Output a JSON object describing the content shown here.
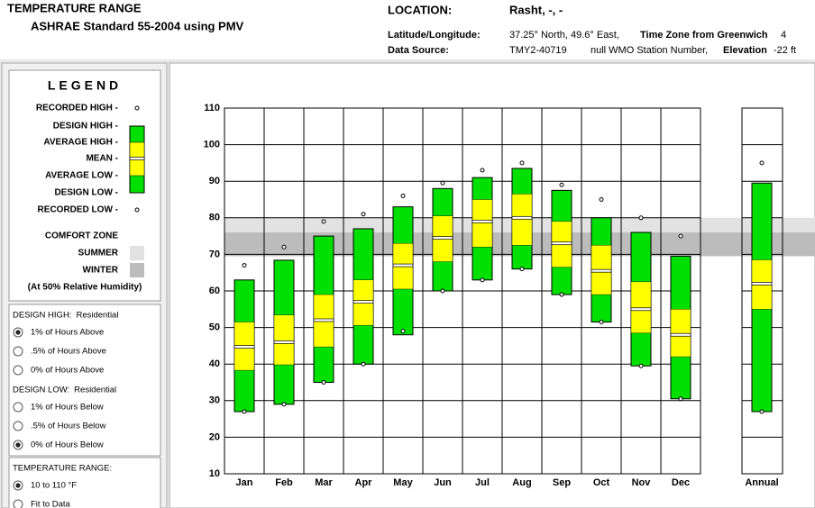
{
  "header": {
    "title": "TEMPERATURE RANGE",
    "subtitle": "ASHRAE Standard 55-2004 using PMV",
    "location_label": "LOCATION:",
    "location": "Rasht, -, -",
    "latlon_label": "Latitude/Longitude:",
    "latlon": "37.25° North, 49.6° East,",
    "timezone_label": "Time Zone from Greenwich",
    "timezone": "4",
    "source_label": "Data Source:",
    "source": "TMY2-40719",
    "wmo": "null WMO Station Number,",
    "elevation_label": "Elevation",
    "elevation": "-22 ft"
  },
  "legend_panel": {
    "title": "LEGEND",
    "comfort_title": "COMFORT ZONE",
    "note": "(At 50% Relative Humidity)"
  },
  "options": [
    {
      "title": "DESIGN HIGH:",
      "subtitle": "Residential",
      "items": [
        "1% of Hours Above",
        ".5% of Hours Above",
        "0% of Hours Above"
      ],
      "selected": 0
    },
    {
      "title": "DESIGN LOW:",
      "subtitle": "Residential",
      "items": [
        "1% of Hours Below",
        ".5% of Hours Below",
        "0% of Hours Below"
      ],
      "selected": 2
    },
    {
      "title": "TEMPERATURE RANGE:",
      "items": [
        "10 to 110 °F",
        "Fit to Data"
      ],
      "selected": 0
    }
  ],
  "chart_data": {
    "type": "range",
    "categories": [
      "Jan",
      "Feb",
      "Mar",
      "Apr",
      "May",
      "Jun",
      "Jul",
      "Aug",
      "Sep",
      "Oct",
      "Nov",
      "Dec",
      "Annual"
    ],
    "series": [
      {
        "name": "RECORDED HIGH -",
        "color": "#000000",
        "values": [
          67,
          72,
          79,
          81,
          86,
          89.5,
          93,
          95,
          89,
          85,
          80,
          75,
          95
        ]
      },
      {
        "name": "DESIGN HIGH -",
        "color": "#00e000",
        "values": [
          63,
          68.4,
          75,
          77,
          83,
          88,
          91,
          93.5,
          87.5,
          80,
          76,
          69.5,
          89.5
        ]
      },
      {
        "name": "AVERAGE HIGH -",
        "color": "#ffff00",
        "values": [
          51.5,
          53.4,
          59,
          63,
          73,
          80.5,
          85,
          86.5,
          79,
          72.5,
          62.5,
          55,
          68.5
        ]
      },
      {
        "name": "MEAN -",
        "color": "#ffffff",
        "values": [
          44.7,
          46,
          52,
          57,
          67,
          74.5,
          79,
          80,
          73,
          65.5,
          55,
          48,
          62
        ]
      },
      {
        "name": "AVERAGE LOW -",
        "color": "#ffff00",
        "values": [
          38.3,
          39.8,
          44.7,
          50.6,
          60.5,
          68,
          72,
          72.5,
          66.5,
          59,
          48.5,
          42,
          55
        ]
      },
      {
        "name": "DESIGN LOW -",
        "color": "#00e000",
        "values": [
          27,
          29,
          35,
          40,
          48,
          60,
          63,
          66,
          59,
          51.5,
          39.5,
          30.5,
          27
        ]
      },
      {
        "name": "RECORDED LOW -",
        "color": "#000000",
        "values": [
          27,
          29,
          35,
          40,
          49,
          60,
          63,
          66,
          59,
          51.5,
          39.5,
          30.5,
          27
        ]
      }
    ],
    "comfort_zones": [
      {
        "name": "SUMMER",
        "color": "#e2e2e2",
        "range": [
          70,
          80
        ]
      },
      {
        "name": "WINTER",
        "color": "#bcbcbc",
        "range": [
          69.5,
          76
        ]
      }
    ],
    "ylim": [
      10,
      110
    ],
    "yticks": [
      10,
      20,
      30,
      40,
      50,
      60,
      70,
      80,
      90,
      100,
      110
    ],
    "grid": true
  }
}
